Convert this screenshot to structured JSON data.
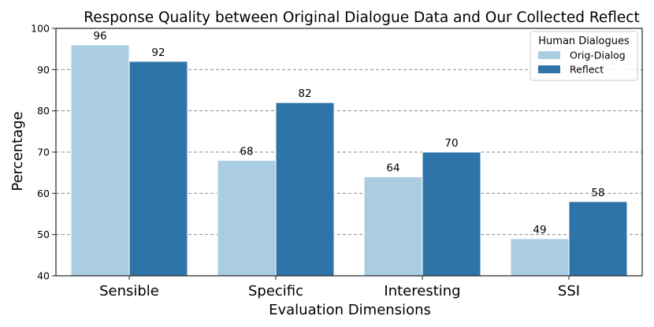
{
  "chart_data": {
    "type": "bar",
    "title": "Response Quality between Original Dialogue Data and Our Collected Reflect",
    "xlabel": "Evaluation Dimensions",
    "ylabel": "Percentage",
    "categories": [
      "Sensible",
      "Specific",
      "Interesting",
      "SSI"
    ],
    "series": [
      {
        "name": "Orig-Dialog",
        "values": [
          96,
          68,
          64,
          49
        ],
        "color": "#aacde2"
      },
      {
        "name": "Reflect",
        "values": [
          92,
          82,
          70,
          58
        ],
        "color": "#2f74a8"
      }
    ],
    "ylim": [
      40,
      100
    ],
    "yticks": [
      "40",
      "50",
      "60",
      "70",
      "80",
      "90",
      "100"
    ],
    "grid": true,
    "legend": {
      "title": "Human Dialogues",
      "placement": "top-right"
    }
  }
}
